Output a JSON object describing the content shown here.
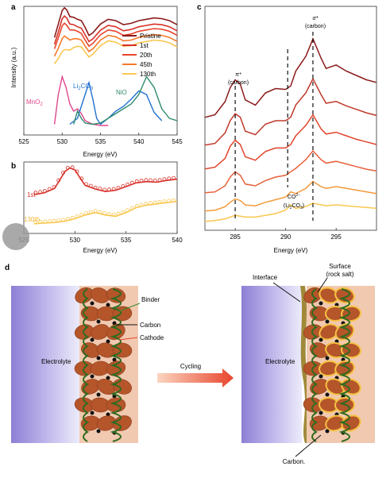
{
  "panels": {
    "a": {
      "label": "a",
      "ylabel": "Intensity (a.u.)",
      "xlabel": "Energy (eV)",
      "legend": [
        "Pristine",
        "1st",
        "20th",
        "45th",
        "130th"
      ],
      "ref_labels": {
        "mno2": "MnO",
        "mno2_sub": "2",
        "li2co3_a": "Li",
        "li2co3_sub1": "2",
        "li2co3_b": "CO",
        "li2co3_sub2": "3",
        "nio": "NiO"
      }
    },
    "b": {
      "label": "b",
      "xlabel": "Energy (eV)",
      "series_labels": [
        "1st",
        "130th"
      ]
    },
    "c": {
      "label": "c",
      "xlabel": "Energy (eV)",
      "pi_label": [
        "π*",
        "(carbon)"
      ],
      "sigma_label": [
        "σ*",
        "(carbon)"
      ],
      "co3_label": [
        "CO",
        "2−",
        "3",
        "(Li",
        "2",
        "CO",
        "3",
        ")"
      ]
    },
    "d": {
      "label": "d",
      "left_labels": {
        "binder": "Binder",
        "carbon": "Carbon",
        "cathode": "Cathode",
        "electrolyte": "Electrolyte"
      },
      "arrow_label": "Cycling",
      "right_labels": {
        "interface": "Interface",
        "surface": [
          "Surface",
          "(rock salt)"
        ],
        "electrolyte": "Electrolyte",
        "carbon": "Carbon."
      }
    }
  },
  "chart_data": [
    {
      "panel": "a",
      "type": "line",
      "xlabel": "Energy (eV)",
      "ylabel": "Intensity (a.u.)",
      "xlim": [
        525,
        545
      ],
      "xticks": [
        525,
        530,
        535,
        540,
        545
      ],
      "series": [
        {
          "name": "Pristine",
          "color": "#8b1a1a",
          "x": [
            529.0,
            529.5,
            530.0,
            530.3,
            530.6,
            531.0,
            531.5,
            532.0,
            532.5,
            533.0,
            533.5,
            534.0,
            535.0,
            536.0,
            537.0,
            538.0,
            539.0,
            540.0,
            541.0,
            542.0,
            543.0,
            544.0,
            545.0
          ],
          "y": [
            0.55,
            0.75,
            0.95,
            0.99,
            0.96,
            0.86,
            0.85,
            0.82,
            0.8,
            0.7,
            0.58,
            0.62,
            0.75,
            0.82,
            0.8,
            0.74,
            0.76,
            0.8,
            0.82,
            0.84,
            0.83,
            0.8,
            0.74
          ]
        },
        {
          "name": "1st",
          "color": "#d73027",
          "x": [
            529.0,
            529.5,
            530.0,
            530.3,
            530.6,
            531.0,
            531.5,
            532.0,
            532.5,
            533.0,
            533.5,
            534.0,
            535.0,
            536.0,
            537.0,
            538.0,
            539.0,
            540.0,
            541.0,
            542.0,
            543.0,
            544.0,
            545.0
          ],
          "y": [
            0.52,
            0.7,
            0.9,
            0.94,
            0.91,
            0.82,
            0.81,
            0.78,
            0.76,
            0.66,
            0.56,
            0.6,
            0.73,
            0.8,
            0.78,
            0.72,
            0.74,
            0.78,
            0.8,
            0.82,
            0.81,
            0.78,
            0.72
          ]
        },
        {
          "name": "20th",
          "color": "#e8452c",
          "x": [
            529.0,
            529.5,
            530.0,
            530.3,
            530.6,
            531.0,
            531.5,
            532.0,
            532.5,
            533.0,
            533.5,
            534.0,
            535.0,
            536.0,
            537.0,
            538.0,
            539.0,
            540.0,
            541.0,
            542.0,
            543.0,
            544.0,
            545.0
          ],
          "y": [
            0.5,
            0.66,
            0.84,
            0.88,
            0.85,
            0.78,
            0.78,
            0.76,
            0.73,
            0.63,
            0.54,
            0.58,
            0.71,
            0.78,
            0.76,
            0.7,
            0.72,
            0.76,
            0.78,
            0.8,
            0.79,
            0.76,
            0.7
          ]
        },
        {
          "name": "45th",
          "color": "#f57a28",
          "x": [
            529.0,
            529.5,
            530.0,
            530.3,
            530.6,
            531.0,
            531.5,
            532.0,
            532.5,
            533.0,
            533.5,
            534.0,
            535.0,
            536.0,
            537.0,
            538.0,
            539.0,
            540.0,
            541.0,
            542.0,
            543.0,
            544.0,
            545.0
          ],
          "y": [
            0.46,
            0.58,
            0.72,
            0.76,
            0.74,
            0.7,
            0.72,
            0.72,
            0.7,
            0.61,
            0.53,
            0.57,
            0.7,
            0.77,
            0.75,
            0.69,
            0.7,
            0.74,
            0.76,
            0.78,
            0.77,
            0.74,
            0.68
          ]
        },
        {
          "name": "130th",
          "color": "#f9c74f",
          "x": [
            529.0,
            529.5,
            530.0,
            530.3,
            530.6,
            531.0,
            531.5,
            532.0,
            532.5,
            533.0,
            533.5,
            534.0,
            535.0,
            536.0,
            537.0,
            538.0,
            539.0,
            540.0,
            541.0,
            542.0,
            543.0,
            544.0,
            545.0
          ],
          "y": [
            0.42,
            0.5,
            0.6,
            0.63,
            0.63,
            0.62,
            0.66,
            0.68,
            0.67,
            0.59,
            0.52,
            0.56,
            0.69,
            0.76,
            0.74,
            0.68,
            0.69,
            0.73,
            0.75,
            0.77,
            0.76,
            0.73,
            0.67
          ]
        },
        {
          "name": "MnO2",
          "color": "#e0468c",
          "x": [
            529.0,
            529.5,
            530.0,
            530.5,
            531.0,
            531.5,
            532.0,
            532.5,
            533.0,
            534.0,
            535.0,
            536.0
          ],
          "y": [
            0.05,
            0.3,
            0.45,
            0.36,
            0.22,
            0.16,
            0.18,
            0.14,
            0.08,
            0.05,
            0.04,
            0.04
          ]
        },
        {
          "name": "Li2CO3",
          "color": "#1f6fd0",
          "x": [
            531.0,
            532.0,
            533.0,
            533.5,
            534.0,
            534.5,
            535.0,
            536.0,
            537.0,
            538.0,
            539.0,
            540.0,
            541.0,
            542.0,
            543.0
          ],
          "y": [
            0.05,
            0.1,
            0.3,
            0.4,
            0.26,
            0.1,
            0.05,
            0.1,
            0.16,
            0.2,
            0.26,
            0.33,
            0.3,
            0.15,
            0.08
          ]
        },
        {
          "name": "NiO",
          "color": "#2e8b6a",
          "x": [
            531.5,
            532.0,
            532.5,
            533.0,
            534.0,
            535.0,
            536.0,
            537.0,
            538.0,
            539.0,
            540.0,
            541.0,
            542.0,
            543.0,
            544.0,
            545.0
          ],
          "y": [
            0.05,
            0.16,
            0.1,
            0.06,
            0.05,
            0.06,
            0.1,
            0.14,
            0.18,
            0.22,
            0.3,
            0.45,
            0.36,
            0.18,
            0.1,
            0.08
          ]
        }
      ]
    },
    {
      "panel": "b",
      "type": "line",
      "xlabel": "Energy (eV)",
      "xlim": [
        525,
        540
      ],
      "xticks": [
        525,
        530,
        535,
        540
      ],
      "series": [
        {
          "name": "1st",
          "color": "#d73027",
          "x": [
            526,
            527,
            528,
            528.5,
            529,
            529.5,
            530,
            530.5,
            531,
            532,
            533,
            534,
            535,
            536,
            537,
            538,
            539,
            540
          ],
          "y": [
            0.55,
            0.58,
            0.65,
            0.78,
            0.92,
            0.98,
            0.95,
            0.82,
            0.7,
            0.64,
            0.6,
            0.62,
            0.68,
            0.74,
            0.76,
            0.75,
            0.78,
            0.8
          ]
        },
        {
          "name": "130th",
          "color": "#f9c74f",
          "x": [
            526,
            527,
            528,
            529,
            530,
            531,
            532,
            533,
            534,
            535,
            536,
            537,
            538,
            539,
            540
          ],
          "y": [
            0.08,
            0.09,
            0.1,
            0.12,
            0.16,
            0.22,
            0.26,
            0.22,
            0.2,
            0.26,
            0.34,
            0.38,
            0.4,
            0.42,
            0.44
          ]
        }
      ]
    },
    {
      "panel": "c",
      "type": "line",
      "xlabel": "Energy (eV)",
      "xlim": [
        282,
        299
      ],
      "xticks": [
        285,
        290,
        295
      ],
      "markers": [
        285,
        290.2,
        292.7
      ],
      "series": [
        {
          "name": "",
          "color": "#8b1a1a",
          "x": [
            282,
            283,
            284,
            284.5,
            285,
            285.5,
            286,
            287,
            288,
            289,
            290,
            290.5,
            291,
            292,
            292.7,
            293.5,
            294,
            295,
            296,
            297,
            298,
            299
          ],
          "y": [
            0.02,
            0.05,
            0.2,
            0.36,
            0.45,
            0.4,
            0.22,
            0.16,
            0.3,
            0.35,
            0.34,
            0.38,
            0.55,
            0.72,
            0.92,
            0.7,
            0.58,
            0.62,
            0.55,
            0.5,
            0.45,
            0.42
          ]
        },
        {
          "name": "",
          "color": "#c0392b",
          "x": [
            282,
            283,
            284,
            284.5,
            285,
            285.5,
            286,
            287,
            288,
            289,
            290,
            290.5,
            291,
            292,
            292.7,
            293.5,
            294,
            295,
            296,
            297,
            298,
            299
          ],
          "y": [
            0.02,
            0.04,
            0.16,
            0.3,
            0.38,
            0.34,
            0.18,
            0.14,
            0.26,
            0.3,
            0.3,
            0.34,
            0.48,
            0.62,
            0.78,
            0.6,
            0.5,
            0.52,
            0.47,
            0.43,
            0.39,
            0.36
          ]
        },
        {
          "name": "",
          "color": "#e0452c",
          "x": [
            282,
            283,
            284,
            284.5,
            285,
            285.5,
            286,
            287,
            288,
            289,
            290,
            290.5,
            291,
            292,
            292.7,
            293.5,
            294,
            295,
            296,
            297,
            298,
            299
          ],
          "y": [
            0.02,
            0.04,
            0.14,
            0.28,
            0.35,
            0.3,
            0.16,
            0.12,
            0.22,
            0.26,
            0.26,
            0.3,
            0.4,
            0.52,
            0.64,
            0.48,
            0.42,
            0.44,
            0.4,
            0.36,
            0.33,
            0.3
          ]
        },
        {
          "name": "",
          "color": "#e8613a",
          "x": [
            282,
            283,
            284,
            284.5,
            285,
            285.5,
            286,
            287,
            288,
            289,
            290,
            290.5,
            291,
            292,
            292.7,
            293.5,
            294,
            295,
            296,
            297,
            298,
            299
          ],
          "y": [
            0.02,
            0.03,
            0.1,
            0.2,
            0.26,
            0.22,
            0.12,
            0.1,
            0.16,
            0.2,
            0.22,
            0.26,
            0.3,
            0.4,
            0.5,
            0.4,
            0.36,
            0.38,
            0.35,
            0.32,
            0.29,
            0.27
          ]
        },
        {
          "name": "",
          "color": "#f39a3c",
          "x": [
            282,
            283,
            284,
            284.5,
            285,
            285.5,
            286,
            287,
            288,
            289,
            290,
            290.5,
            291,
            292,
            292.7,
            293.5,
            294,
            295,
            296,
            297,
            298,
            299
          ],
          "y": [
            0.02,
            0.03,
            0.07,
            0.12,
            0.16,
            0.14,
            0.09,
            0.08,
            0.12,
            0.15,
            0.18,
            0.24,
            0.22,
            0.28,
            0.36,
            0.3,
            0.28,
            0.3,
            0.28,
            0.26,
            0.24,
            0.22
          ]
        },
        {
          "name": "",
          "color": "#f9c74f",
          "x": [
            282,
            283,
            284,
            284.5,
            285,
            285.5,
            286,
            287,
            288,
            289,
            290,
            290.5,
            291,
            292,
            292.7,
            293.5,
            294,
            295,
            296,
            297,
            298,
            299
          ],
          "y": [
            0.01,
            0.02,
            0.04,
            0.06,
            0.08,
            0.07,
            0.06,
            0.06,
            0.08,
            0.1,
            0.14,
            0.2,
            0.16,
            0.18,
            0.22,
            0.2,
            0.19,
            0.2,
            0.19,
            0.18,
            0.17,
            0.16
          ]
        }
      ]
    }
  ]
}
